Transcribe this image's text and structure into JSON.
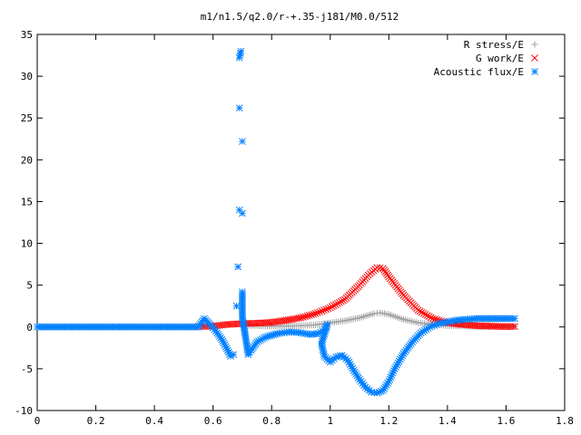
{
  "chart_data": {
    "type": "scatter",
    "title": "m1/n1.5/q2.0/r-+.35-j181/M0.0/512",
    "xlabel": "",
    "ylabel": "",
    "xlim": [
      0,
      1.8
    ],
    "ylim": [
      -10,
      35
    ],
    "x_ticks": [
      "0",
      "0.2",
      "0.4",
      "0.6",
      "0.8",
      "1",
      "1.2",
      "1.4",
      "1.6",
      "1.8"
    ],
    "y_ticks": [
      "-10",
      "-5",
      "0",
      "5",
      "10",
      "15",
      "20",
      "25",
      "30",
      "35"
    ],
    "grid": false,
    "legend_position": "top-right",
    "series": [
      {
        "name": "R stress/E",
        "marker": "plus",
        "color": "#a0a0a4",
        "points": [
          [
            0.7,
            0.2
          ],
          [
            0.75,
            0.15
          ],
          [
            0.8,
            0.1
          ],
          [
            0.85,
            0.1
          ],
          [
            0.9,
            0.15
          ],
          [
            0.95,
            0.25
          ],
          [
            1.0,
            0.5
          ],
          [
            1.05,
            0.75
          ],
          [
            1.1,
            1.1
          ],
          [
            1.15,
            1.6
          ],
          [
            1.17,
            1.7
          ],
          [
            1.2,
            1.5
          ],
          [
            1.25,
            0.9
          ],
          [
            1.3,
            0.5
          ],
          [
            1.35,
            0.3
          ],
          [
            1.4,
            0.15
          ],
          [
            1.45,
            0.1
          ],
          [
            1.5,
            0.05
          ],
          [
            1.55,
            0.05
          ],
          [
            1.6,
            0.05
          ],
          [
            1.63,
            0.05
          ]
        ]
      },
      {
        "name": "G work/E",
        "marker": "x",
        "color": "#ff0000",
        "points": [
          [
            0.55,
            0.05
          ],
          [
            0.6,
            0.1
          ],
          [
            0.65,
            0.3
          ],
          [
            0.7,
            0.4
          ],
          [
            0.75,
            0.45
          ],
          [
            0.8,
            0.55
          ],
          [
            0.85,
            0.8
          ],
          [
            0.9,
            1.1
          ],
          [
            0.95,
            1.6
          ],
          [
            1.0,
            2.3
          ],
          [
            1.05,
            3.3
          ],
          [
            1.1,
            5.0
          ],
          [
            1.13,
            6.2
          ],
          [
            1.16,
            7.1
          ],
          [
            1.18,
            7.0
          ],
          [
            1.2,
            6.0
          ],
          [
            1.25,
            3.8
          ],
          [
            1.3,
            2.0
          ],
          [
            1.35,
            1.0
          ],
          [
            1.4,
            0.5
          ],
          [
            1.45,
            0.3
          ],
          [
            1.5,
            0.15
          ],
          [
            1.55,
            0.1
          ],
          [
            1.6,
            0.05
          ],
          [
            1.63,
            0.05
          ]
        ]
      },
      {
        "name": "Acoustic flux/E",
        "marker": "star",
        "color": "#0080ff",
        "points": [
          [
            0.0,
            0.0
          ],
          [
            0.05,
            0.0
          ],
          [
            0.1,
            0.0
          ],
          [
            0.15,
            0.0
          ],
          [
            0.2,
            0.0
          ],
          [
            0.25,
            0.0
          ],
          [
            0.3,
            0.0
          ],
          [
            0.35,
            0.0
          ],
          [
            0.4,
            0.0
          ],
          [
            0.45,
            0.0
          ],
          [
            0.5,
            0.0
          ],
          [
            0.55,
            0.0
          ],
          [
            0.57,
            1.0
          ],
          [
            0.59,
            0.3
          ],
          [
            0.61,
            -0.5
          ],
          [
            0.63,
            -1.5
          ],
          [
            0.65,
            -2.8
          ],
          [
            0.66,
            -3.5
          ],
          [
            0.67,
            -3.3
          ],
          [
            0.68,
            2.5
          ],
          [
            0.685,
            7.2
          ],
          [
            0.69,
            14.0
          ],
          [
            0.69,
            26.2
          ],
          [
            0.69,
            32.2
          ],
          [
            0.695,
            33.0
          ],
          [
            0.7,
            22.2
          ],
          [
            0.7,
            13.6
          ],
          [
            0.7,
            4.2
          ],
          [
            0.7,
            1.2
          ],
          [
            0.71,
            -1.0
          ],
          [
            0.72,
            -3.3
          ],
          [
            0.73,
            -2.8
          ],
          [
            0.75,
            -1.8
          ],
          [
            0.78,
            -1.2
          ],
          [
            0.82,
            -0.8
          ],
          [
            0.86,
            -0.6
          ],
          [
            0.9,
            -0.7
          ],
          [
            0.93,
            -0.9
          ],
          [
            0.96,
            -0.8
          ],
          [
            0.98,
            -0.3
          ],
          [
            0.99,
            0.3
          ],
          [
            0.97,
            -2.0
          ],
          [
            0.98,
            -3.5
          ],
          [
            1.0,
            -4.2
          ],
          [
            1.02,
            -3.6
          ],
          [
            1.04,
            -3.4
          ],
          [
            1.06,
            -4.0
          ],
          [
            1.08,
            -5.2
          ],
          [
            1.1,
            -6.3
          ],
          [
            1.12,
            -7.2
          ],
          [
            1.14,
            -7.8
          ],
          [
            1.16,
            -7.9
          ],
          [
            1.18,
            -7.6
          ],
          [
            1.2,
            -6.5
          ],
          [
            1.22,
            -5.0
          ],
          [
            1.25,
            -3.2
          ],
          [
            1.28,
            -1.8
          ],
          [
            1.31,
            -0.7
          ],
          [
            1.34,
            0.0
          ],
          [
            1.37,
            0.4
          ],
          [
            1.4,
            0.6
          ],
          [
            1.43,
            0.8
          ],
          [
            1.46,
            0.9
          ],
          [
            1.5,
            1.0
          ],
          [
            1.55,
            1.0
          ],
          [
            1.6,
            1.0
          ],
          [
            1.63,
            1.0
          ]
        ]
      }
    ]
  }
}
